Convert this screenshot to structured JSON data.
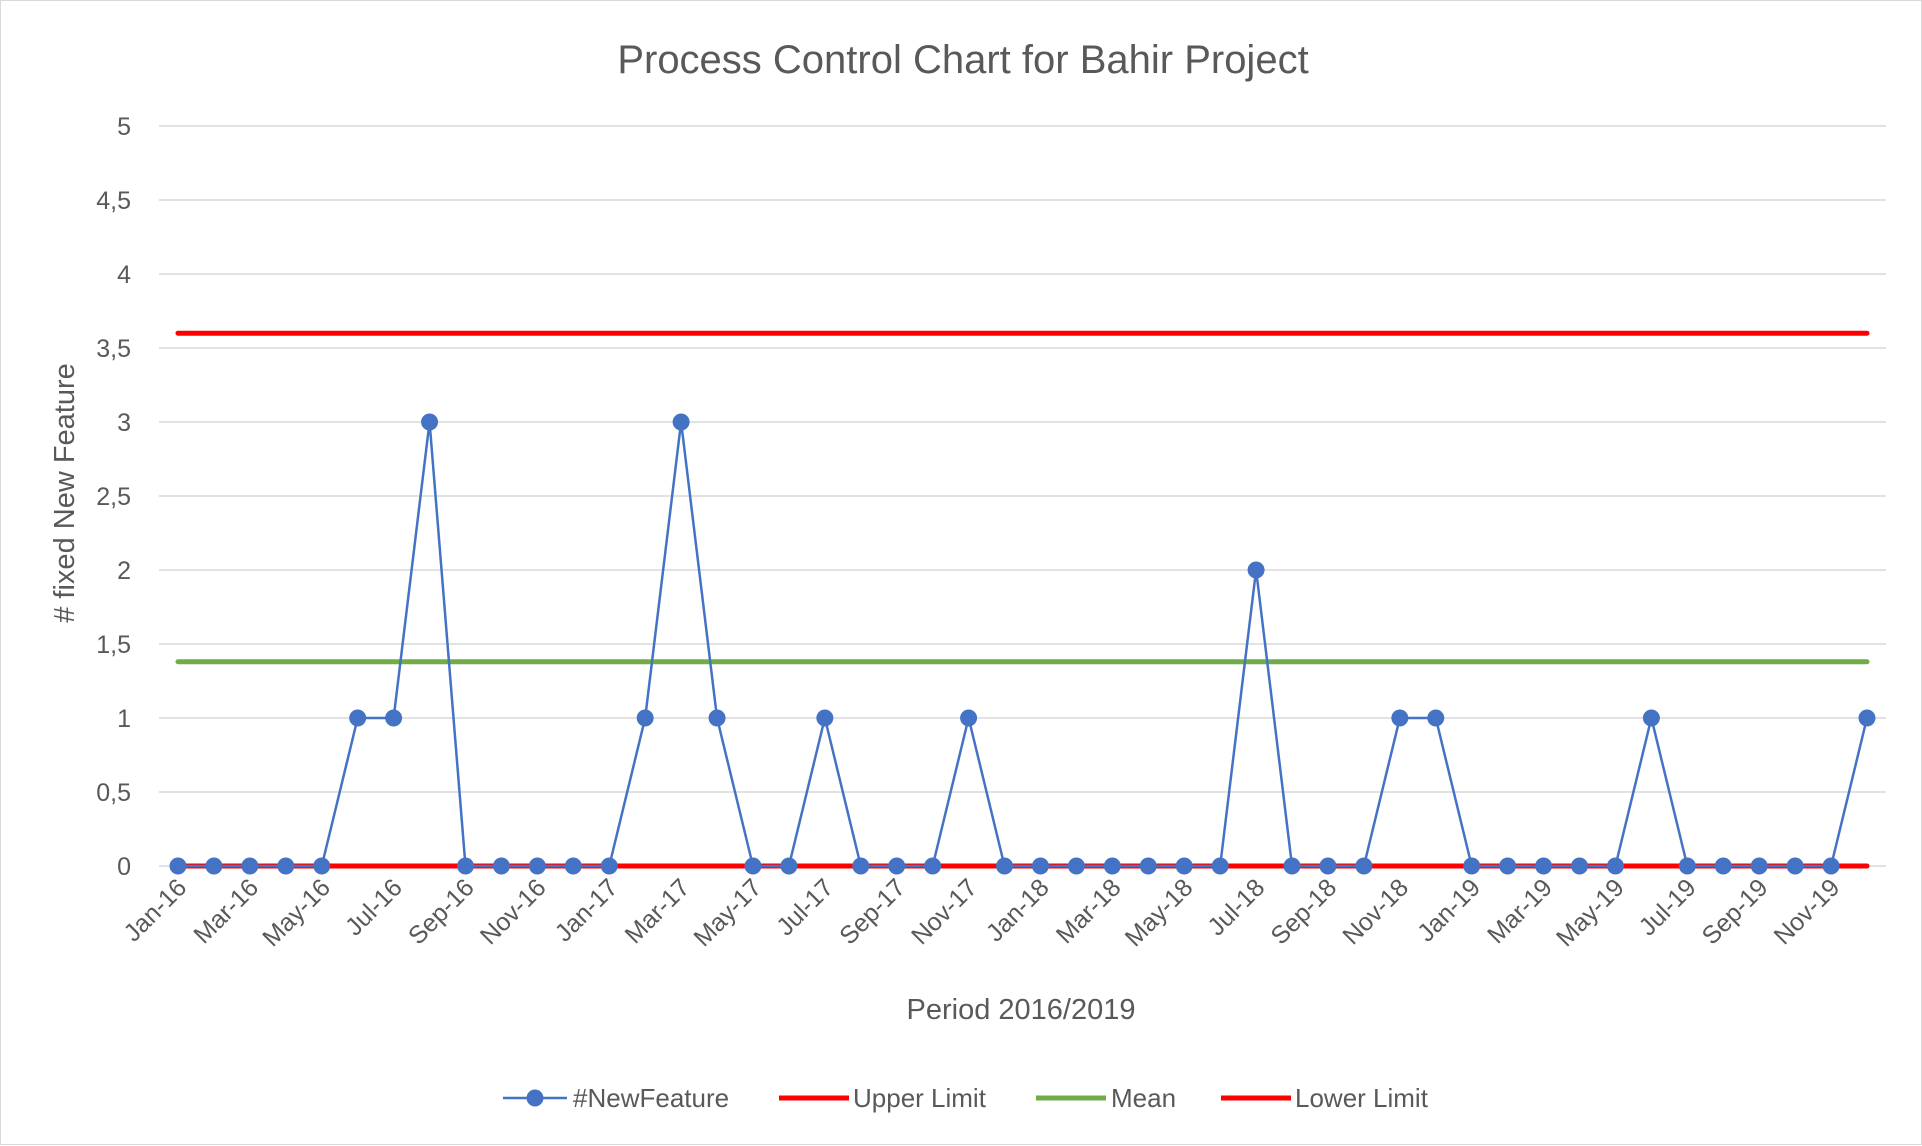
{
  "chart_data": {
    "type": "line",
    "title": "Process Control Chart for Bahir Project",
    "xlabel": "Period 2016/2019",
    "ylabel": "# fixed New Feature",
    "ylim": [
      0,
      5
    ],
    "ytick_labels": [
      "0",
      "0,5",
      "1",
      "1,5",
      "2",
      "2,5",
      "3",
      "3,5",
      "4",
      "4,5",
      "5"
    ],
    "grid": true,
    "legend_position": "bottom",
    "x": [
      "Jan-16",
      "Feb-16",
      "Mar-16",
      "Apr-16",
      "May-16",
      "Jun-16",
      "Jul-16",
      "Aug-16",
      "Sep-16",
      "Oct-16",
      "Nov-16",
      "Dec-16",
      "Jan-17",
      "Feb-17",
      "Mar-17",
      "Apr-17",
      "May-17",
      "Jun-17",
      "Jul-17",
      "Aug-17",
      "Sep-17",
      "Oct-17",
      "Nov-17",
      "Dec-17",
      "Jan-18",
      "Feb-18",
      "Mar-18",
      "Apr-18",
      "May-18",
      "Jun-18",
      "Jul-18",
      "Aug-18",
      "Sep-18",
      "Oct-18",
      "Nov-18",
      "Dec-18",
      "Jan-19",
      "Feb-19",
      "Mar-19",
      "Apr-19",
      "May-19",
      "Jun-19",
      "Jul-19",
      "Aug-19",
      "Sep-19",
      "Oct-19",
      "Nov-19",
      "Dec-19"
    ],
    "xtick_labels": [
      "Jan-16",
      "Mar-16",
      "May-16",
      "Jul-16",
      "Sep-16",
      "Nov-16",
      "Jan-17",
      "Mar-17",
      "May-17",
      "Jul-17",
      "Sep-17",
      "Nov-17",
      "Jan-18",
      "Mar-18",
      "May-18",
      "Jul-18",
      "Sep-18",
      "Nov-18",
      "Jan-19",
      "Mar-19",
      "May-19",
      "Jul-19",
      "Sep-19",
      "Nov-19"
    ],
    "series": [
      {
        "name": "#NewFeature",
        "color": "#4472c4",
        "marker": "circle",
        "values": [
          0,
          0,
          0,
          0,
          0,
          1,
          1,
          3,
          0,
          0,
          0,
          0,
          0,
          1,
          3,
          1,
          0,
          0,
          1,
          0,
          0,
          0,
          1,
          0,
          0,
          0,
          0,
          0,
          0,
          0,
          2,
          0,
          0,
          0,
          1,
          1,
          0,
          0,
          0,
          0,
          0,
          1,
          0,
          0,
          0,
          0,
          0,
          1
        ]
      },
      {
        "name": "Upper Limit",
        "color": "#ff0000",
        "marker": "none",
        "value": 3.6
      },
      {
        "name": "Mean",
        "color": "#70ad47",
        "marker": "none",
        "value": 1.38
      },
      {
        "name": "Lower Limit",
        "color": "#ff0000",
        "marker": "none",
        "value": 0
      }
    ]
  }
}
